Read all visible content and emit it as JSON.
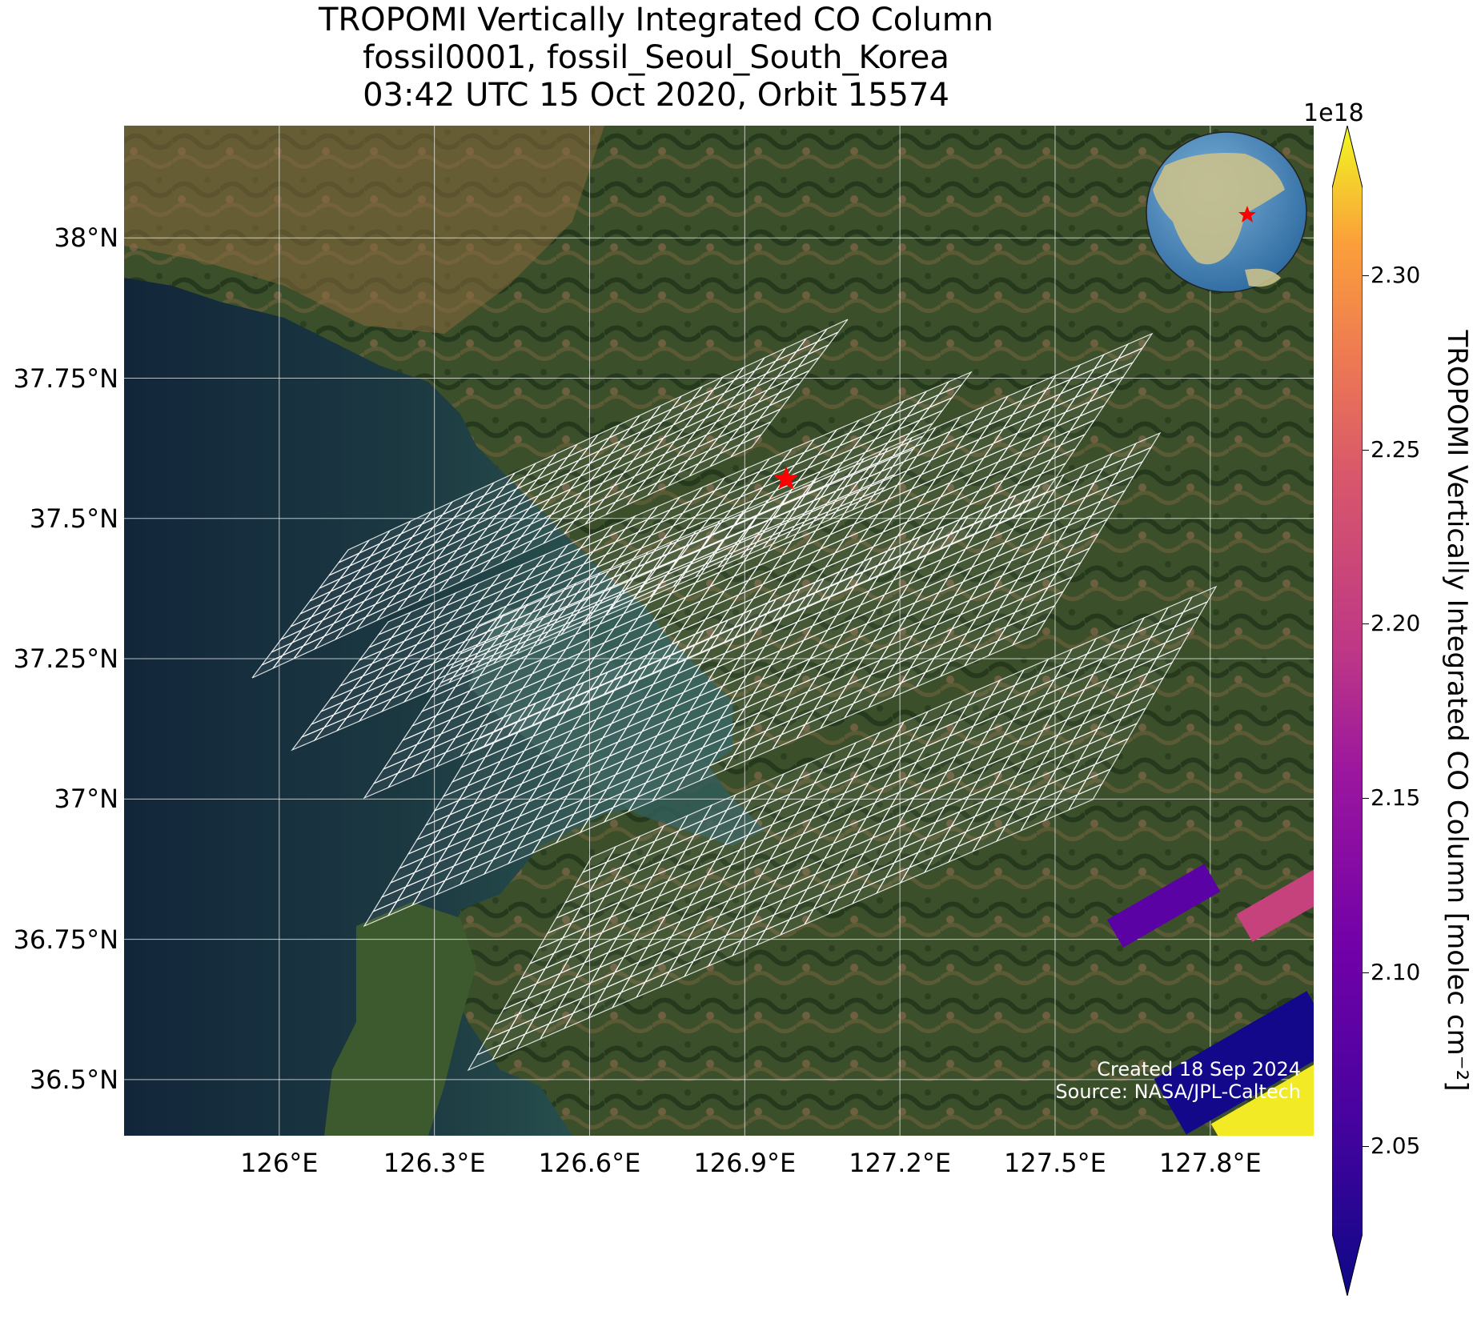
{
  "title": {
    "line1": "TROPOMI Vertically Integrated CO Column",
    "line2": "fossil0001, fossil_Seoul_South_Korea",
    "line3": "03:42 UTC 15 Oct 2020, Orbit 15574"
  },
  "map": {
    "lat_ticks": [
      {
        "value": 38.0,
        "label": "38°N"
      },
      {
        "value": 37.75,
        "label": "37.75°N"
      },
      {
        "value": 37.5,
        "label": "37.5°N"
      },
      {
        "value": 37.25,
        "label": "37.25°N"
      },
      {
        "value": 37.0,
        "label": "37°N"
      },
      {
        "value": 36.75,
        "label": "36.75°N"
      },
      {
        "value": 36.5,
        "label": "36.5°N"
      }
    ],
    "lon_ticks": [
      {
        "value": 126.0,
        "label": "126°E"
      },
      {
        "value": 126.3,
        "label": "126.3°E"
      },
      {
        "value": 126.6,
        "label": "126.6°E"
      },
      {
        "value": 126.9,
        "label": "126.9°E"
      },
      {
        "value": 127.2,
        "label": "127.2°E"
      },
      {
        "value": 127.5,
        "label": "127.5°E"
      },
      {
        "value": 127.8,
        "label": "127.8°E"
      }
    ],
    "extent": {
      "lon_min": 125.7,
      "lon_max": 128.0,
      "lat_min": 36.4,
      "lat_max": 38.2
    },
    "site_marker": {
      "lon": 126.98,
      "lat": 37.57,
      "color": "#ff0000",
      "icon": "star-icon"
    },
    "colors": {
      "land_dark": "#2d4a24",
      "land_light": "#7a6a45",
      "sea": "#1f3a40",
      "grid": "#ffffff"
    }
  },
  "chart_data": {
    "type": "heatmap",
    "title": "TROPOMI Vertically Integrated CO Column",
    "subtitle": "fossil0001, fossil_Seoul_South_Korea",
    "time": "03:42 UTC 15 Oct 2020, Orbit 15574",
    "xlabel": "",
    "ylabel": "",
    "xlim": [
      125.7,
      128.0
    ],
    "ylim": [
      36.4,
      38.2
    ],
    "colorscale": "plasma",
    "colorbar_label": "TROPOMI Vertically Integrated CO Column [molec cm⁻²]",
    "colorbar_multiplier": "1e18",
    "colorbar_range": [
      2.025,
      2.325
    ],
    "colorbar_ticks": [
      2.05,
      2.1,
      2.15,
      2.2,
      2.25,
      2.3
    ],
    "colored_pixels": [
      {
        "lon": 127.71,
        "lat": 36.81,
        "value": 2.09
      },
      {
        "lon": 127.96,
        "lat": 36.82,
        "value": 2.205
      },
      {
        "lon": 127.87,
        "lat": 36.53,
        "value": 2.03
      },
      {
        "lon": 127.98,
        "lat": 36.45,
        "value": 2.32
      }
    ]
  },
  "colorbar": {
    "multiplier": "1e18",
    "label": "TROPOMI Vertically Integrated CO Column [molec cm⁻²]",
    "ticks": [
      {
        "value": 2.3,
        "label": "2.30"
      },
      {
        "value": 2.25,
        "label": "2.25"
      },
      {
        "value": 2.2,
        "label": "2.20"
      },
      {
        "value": 2.15,
        "label": "2.15"
      },
      {
        "value": 2.1,
        "label": "2.10"
      },
      {
        "value": 2.05,
        "label": "2.05"
      }
    ],
    "vmin": 2.025,
    "vmax": 2.325
  },
  "credits": {
    "created": "Created 18 Sep 2024",
    "source": "Source: NASA/JPL-Caltech"
  }
}
